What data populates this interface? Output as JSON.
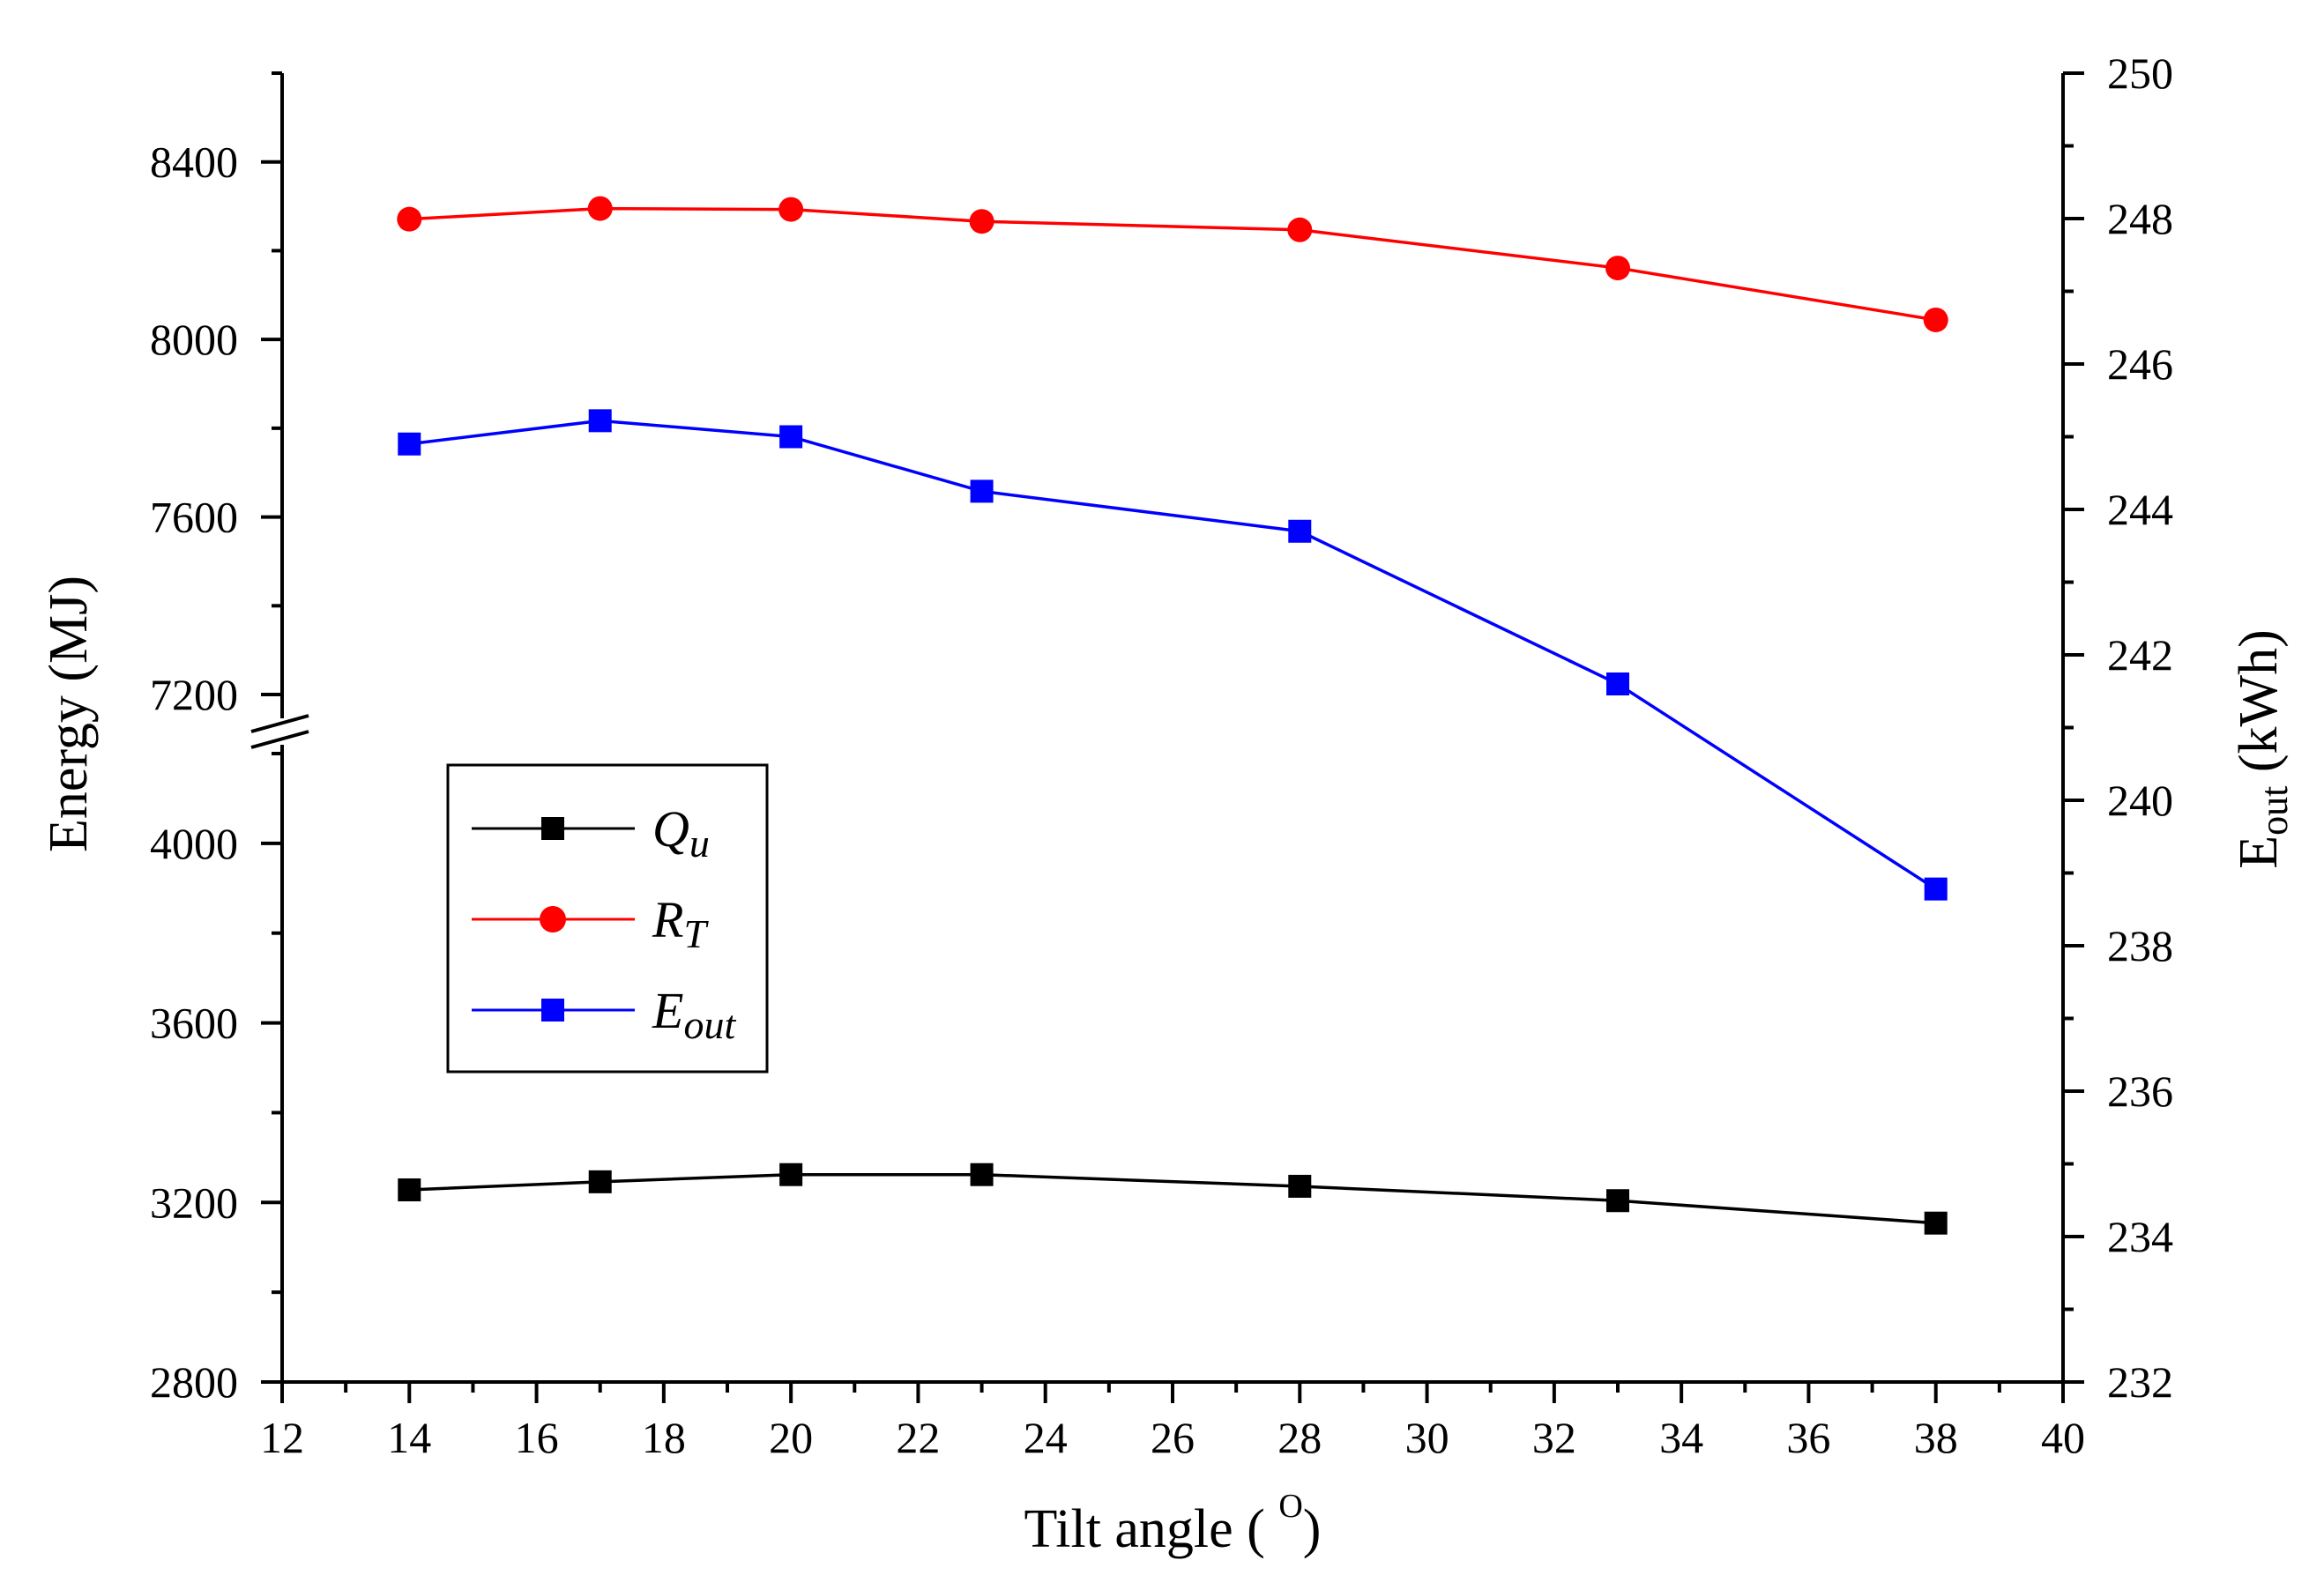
{
  "chart_data": {
    "type": "line",
    "xlabel": "Tilt angle ( ",
    "xlabel_sup": "O",
    "xlabel_close": ")",
    "ylabel": "Energy (MJ)",
    "y2label_main": "E",
    "y2label_sub": "out",
    "y2label_rest": " (kWh)",
    "xlim": [
      12,
      40
    ],
    "xticks": [
      "12",
      "14",
      "16",
      "18",
      "20",
      "22",
      "24",
      "26",
      "28",
      "30",
      "32",
      "34",
      "36",
      "38",
      "40"
    ],
    "ylim_lower": [
      2800,
      4200
    ],
    "ylim_upper": [
      7200,
      8600
    ],
    "yticks_left": [
      "2800",
      "3200",
      "3600",
      "4000",
      "7200",
      "7600",
      "8000",
      "8400"
    ],
    "y2lim": [
      232,
      250
    ],
    "yticks_right": [
      "232",
      "234",
      "236",
      "238",
      "240",
      "242",
      "244",
      "246",
      "248",
      "250"
    ],
    "axis_break": "between 4000 and 7200 on left axis",
    "x": [
      14,
      17,
      20,
      23,
      28,
      33,
      38
    ],
    "series": [
      {
        "name": "Qu",
        "name_main": "Q",
        "name_sub": "u",
        "axis": "left",
        "color": "#000000",
        "marker": "square",
        "values": [
          3228,
          3246,
          3262,
          3262,
          3236,
          3204,
          3154
        ]
      },
      {
        "name": "RT",
        "name_main": "R",
        "name_sub": "T",
        "axis": "left",
        "color": "#ff0000",
        "marker": "circle",
        "values": [
          8271,
          8295,
          8293,
          8266,
          8247,
          8161,
          8044
        ]
      },
      {
        "name": "Eout",
        "name_main": "E",
        "name_sub": "out",
        "axis": "right",
        "color": "#0000ff",
        "marker": "square",
        "values": [
          244.9,
          245.22,
          245.0,
          244.25,
          243.7,
          241.6,
          238.78
        ]
      }
    ],
    "legend_position": "left-middle"
  }
}
